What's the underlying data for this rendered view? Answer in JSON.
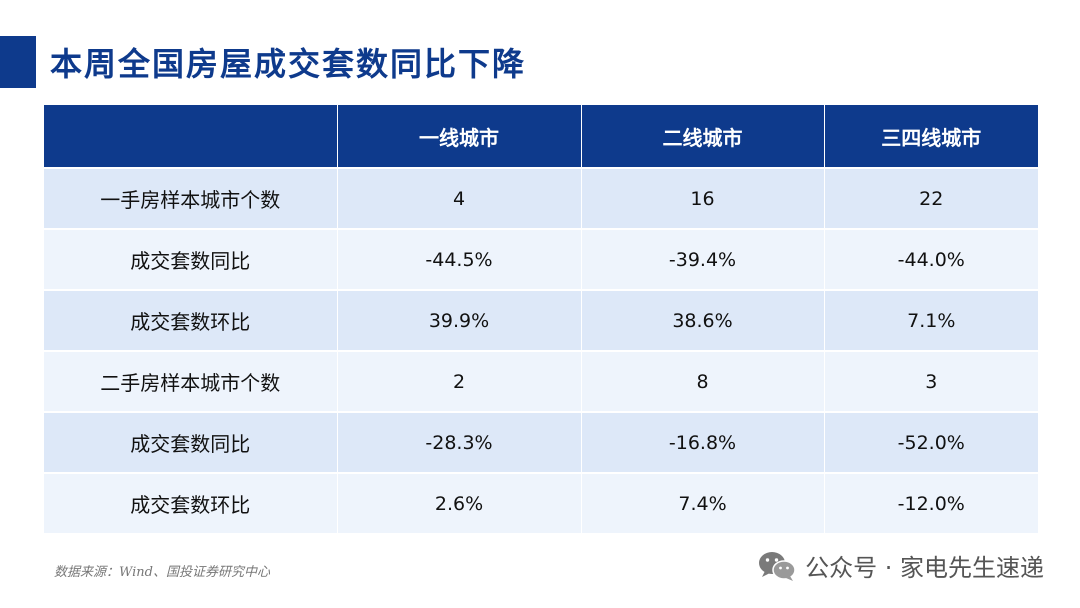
{
  "title": "本周全国房屋成交套数同比下降",
  "table": {
    "headers": [
      "",
      "一线城市",
      "二线城市",
      "三四线城市"
    ],
    "rows": [
      {
        "label": "一手房样本城市个数",
        "values": [
          "4",
          "16",
          "22"
        ]
      },
      {
        "label": "成交套数同比",
        "values": [
          "-44.5%",
          "-39.4%",
          "-44.0%"
        ]
      },
      {
        "label": "成交套数环比",
        "values": [
          "39.9%",
          "38.6%",
          "7.1%"
        ]
      },
      {
        "label": "二手房样本城市个数",
        "values": [
          "2",
          "8",
          "3"
        ]
      },
      {
        "label": "成交套数同比",
        "values": [
          "-28.3%",
          "-16.8%",
          "-52.0%"
        ]
      },
      {
        "label": "成交套数环比",
        "values": [
          "2.6%",
          "7.4%",
          "-12.0%"
        ]
      }
    ]
  },
  "source": "数据来源：Wind、国投证券研究中心",
  "watermark": {
    "icon": "wechat-icon",
    "text": "公众号 · 家电先生速递"
  },
  "colors": {
    "accent": "#0e3a8c",
    "row_odd": "#dde8f8",
    "row_even": "#eef4fc"
  }
}
